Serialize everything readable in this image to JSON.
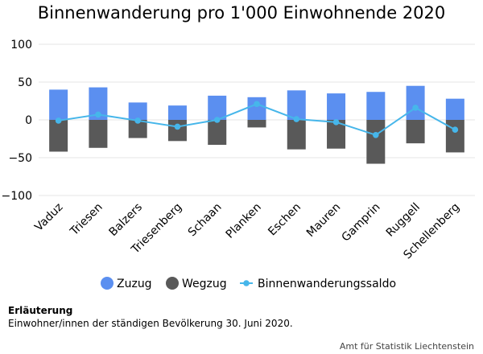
{
  "chart_data": {
    "type": "bar",
    "title": "Binnenwanderung pro 1'000 Einwohnende 2020",
    "categories": [
      "Vaduz",
      "Triesen",
      "Balzers",
      "Triesenberg",
      "Schaan",
      "Planken",
      "Eschen",
      "Mauren",
      "Gamprin",
      "Ruggell",
      "Schellenberg"
    ],
    "series": [
      {
        "name": "Zuzug",
        "kind": "bar",
        "color": "#5b8ff0",
        "values": [
          40,
          43,
          23,
          19,
          32,
          30,
          39,
          35,
          37,
          45,
          28
        ]
      },
      {
        "name": "Wegzug",
        "kind": "bar",
        "color": "#595959",
        "values": [
          -42,
          -37,
          -24,
          -28,
          -33,
          -10,
          -39,
          -38,
          -58,
          -31,
          -43
        ]
      },
      {
        "name": "Binnenwanderungssaldo",
        "kind": "line",
        "color": "#46b6ea",
        "values": [
          -1,
          7,
          -1,
          -9,
          0,
          21,
          1,
          -3,
          -20,
          16,
          -13
        ]
      }
    ],
    "yticks": [
      100,
      50,
      0,
      -50,
      -100
    ],
    "ylim": [
      -100,
      100
    ],
    "grid": true,
    "legend": "bottom"
  },
  "note": {
    "title": "Erläuterung",
    "text": "Einwohner/innen der ständigen Bevölkerung 30. Juni 2020."
  },
  "source": "Amt für Statistik Liechtenstein"
}
